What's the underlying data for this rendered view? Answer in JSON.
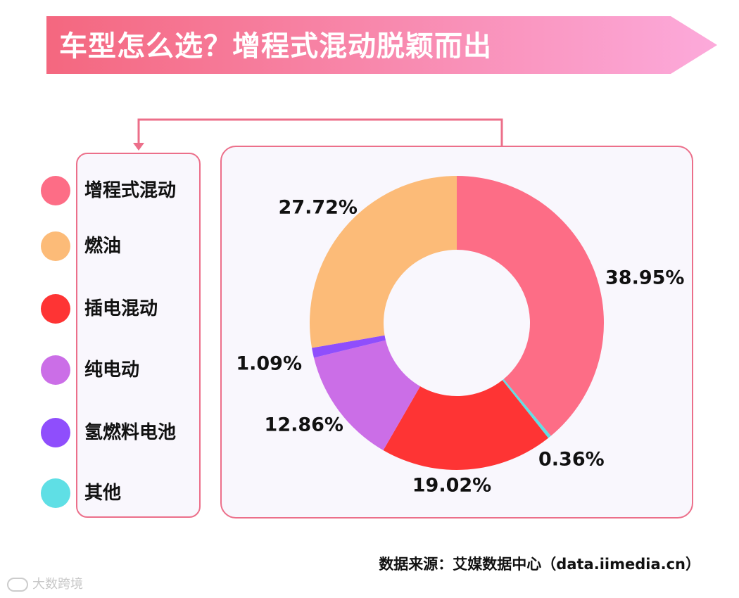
{
  "title": "车型怎么选？增程式混动脱颖而出",
  "colors": {
    "banner_start": "#f4677f",
    "banner_end": "#fcaadb",
    "border": "#ec6f8a",
    "panel_bg": "#f9f7fd"
  },
  "chart_data": {
    "type": "pie",
    "variant": "donut",
    "legend_position": "left",
    "categories": [
      "增程式混动",
      "燃油",
      "插电混动",
      "纯电动",
      "氢燃料电池",
      "其他"
    ],
    "slice_order": [
      "增程式混动",
      "其他",
      "插电混动",
      "纯电动",
      "氢燃料电池",
      "燃油"
    ],
    "values": {
      "增程式混动": 38.95,
      "其他": 0.36,
      "插电混动": 19.02,
      "纯电动": 12.86,
      "氢燃料电池": 1.09,
      "燃油": 27.72
    },
    "labels": {
      "增程式混动": "38.95%",
      "其他": "0.36%",
      "插电混动": "19.02%",
      "纯电动": "12.86%",
      "氢燃料电池": "1.09%",
      "燃油": "27.72%"
    },
    "colors": {
      "增程式混动": "#fd6d86",
      "燃油": "#fcbb78",
      "插电混动": "#fe3434",
      "纯电动": "#cb6ee7",
      "氢燃料电池": "#8f4efc",
      "其他": "#5fdfe5"
    }
  },
  "source": "数据来源：艾媒数据中心（data.iimedia.cn）",
  "watermark": "大数跨境"
}
